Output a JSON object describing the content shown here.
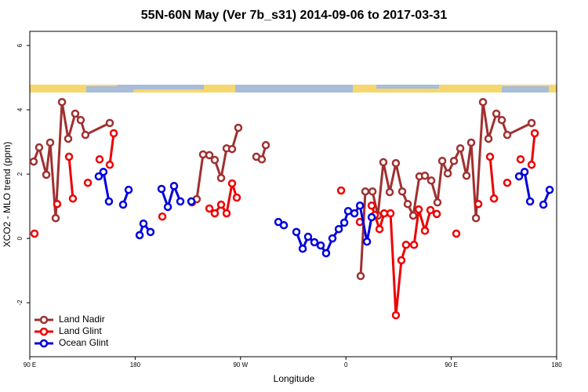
{
  "chart_data": {
    "type": "line",
    "title": "55N-60N May (Ver 7b_s31)   2014-09-06 to 2017-03-31",
    "xlabel": "Longitude",
    "ylabel": "XCO2 - MLO trend (ppm)",
    "xlim": [
      90,
      540
    ],
    "ylim": [
      -3.68,
      6.44
    ],
    "xticks": [
      {
        "value": 90,
        "label": "90 E"
      },
      180,
      {
        "value": 270,
        "label": "90 W"
      },
      {
        "value": 360,
        "label": "0"
      },
      {
        "value": 450,
        "label": "90 E"
      },
      {
        "value": 540,
        "label": "180"
      }
    ],
    "yticks": [
      6,
      4,
      2,
      0,
      -2
    ],
    "legend": "bottom-left",
    "series": [
      {
        "name": "Land Nadir",
        "color": "#a03030",
        "x": [
          93.3,
          98.0,
          104.1,
          107.4,
          112.1,
          117.5,
          122.8,
          128.8,
          133.5,
          137.5,
          158.3,
          null,
          228.6,
          232.6,
          238.0,
          243.4,
          248.0,
          253.4,
          258.1,
          262.8,
          268.1,
          null,
          283.5,
          288.2,
          291.6,
          null,
          372.6,
          376.6,
          382.7,
          387.3,
          392.0,
          397.4,
          402.7,
          408.1,
          412.8,
          417.5,
          422.8,
          427.5,
          432.9,
          438.2,
          442.3,
          447.0,
          452.3,
          457.7,
          463.0,
          467.0,
          471.1,
          477.1,
          481.8,
          488.5,
          493.2,
          497.8,
          518.6
        ],
        "values": [
          2.39,
          2.83,
          1.98,
          2.98,
          0.63,
          4.24,
          3.1,
          3.88,
          3.68,
          3.22,
          3.59,
          null,
          1.12,
          1.22,
          2.61,
          2.59,
          2.44,
          1.88,
          2.8,
          2.78,
          3.44,
          null,
          2.54,
          2.46,
          2.9,
          null,
          -1.17,
          1.46,
          1.46,
          0.71,
          2.37,
          1.44,
          2.34,
          1.46,
          1.07,
          0.71,
          1.93,
          1.95,
          1.8,
          1.12,
          2.41,
          2.02,
          2.41,
          2.8,
          1.95,
          2.98,
          0.63,
          4.24,
          3.1,
          3.88,
          3.68,
          3.22,
          3.59
        ]
      },
      {
        "name": "Land Glint",
        "color": "#ee0000",
        "x": [
          94.0,
          null,
          113.4,
          null,
          123.5,
          126.8,
          null,
          139.6,
          null,
          149.6,
          null,
          158.3,
          161.7,
          null,
          203.2,
          null,
          243.4,
          248.0,
          253.4,
          258.1,
          262.8,
          266.8,
          null,
          355.9,
          null,
          371.9,
          null,
          382.0,
          384.7,
          388.7,
          392.7,
          398.1,
          402.7,
          407.4,
          411.4,
          418.2,
          422.2,
          427.5,
          432.2,
          437.6,
          null,
          454.3,
          null,
          473.1,
          null,
          483.1,
          486.5,
          null,
          497.8,
          null,
          509.2,
          null,
          518.6,
          521.3
        ],
        "values": [
          0.15,
          null,
          1.07,
          null,
          2.54,
          1.24,
          null,
          1.73,
          null,
          2.46,
          null,
          2.29,
          3.27,
          null,
          0.68,
          null,
          0.93,
          0.78,
          1.05,
          0.78,
          1.71,
          1.27,
          null,
          1.49,
          null,
          0.51,
          null,
          1.02,
          0.73,
          0.29,
          0.78,
          0.78,
          -2.39,
          -0.68,
          -0.2,
          -0.2,
          0.9,
          0.24,
          0.88,
          0.76,
          null,
          0.15,
          null,
          1.07,
          null,
          2.54,
          1.24,
          null,
          1.73,
          null,
          2.46,
          null,
          2.29,
          3.27
        ]
      },
      {
        "name": "Ocean Glint",
        "color": "#0000dd",
        "x": [
          148.9,
          152.9,
          157.6,
          null,
          169.7,
          174.4,
          null,
          183.8,
          187.1,
          193.1,
          null,
          202.5,
          207.9,
          213.2,
          218.6,
          null,
          228.0,
          null,
          302.3,
          307.0,
          null,
          317.7,
          323.1,
          327.7,
          333.1,
          338.5,
          343.1,
          348.5,
          353.9,
          358.6,
          361.9,
          367.3,
          372.0,
          378.0,
          382.0,
          null,
          507.9,
          512.6,
          517.3,
          null,
          528.7,
          534.0
        ],
        "values": [
          1.93,
          2.07,
          1.15,
          null,
          1.05,
          1.51,
          null,
          0.1,
          0.46,
          0.2,
          null,
          1.54,
          0.98,
          1.63,
          1.15,
          null,
          1.15,
          null,
          0.51,
          0.41,
          null,
          0.2,
          -0.32,
          0.05,
          -0.12,
          -0.22,
          -0.46,
          0.0,
          0.29,
          0.49,
          0.85,
          0.78,
          1.02,
          -0.1,
          0.66,
          null,
          1.93,
          2.07,
          1.15,
          null,
          1.05,
          1.51
        ]
      }
    ]
  }
}
